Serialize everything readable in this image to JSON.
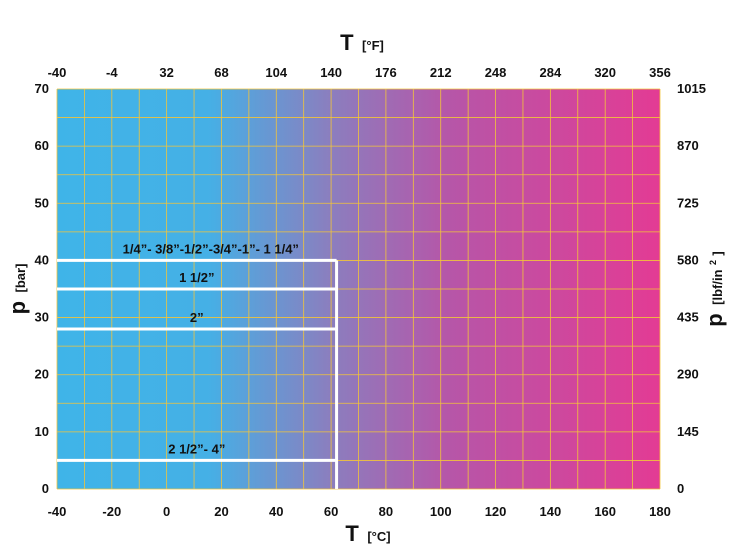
{
  "chart_data": {
    "type": "area",
    "title": "",
    "bottom_axis": {
      "symbol": "T",
      "unit": "[°C]",
      "range": [
        -40,
        180
      ],
      "ticks": [
        "-40",
        "-20",
        "0",
        "20",
        "40",
        "60",
        "80",
        "100",
        "120",
        "140",
        "160",
        "180"
      ]
    },
    "top_axis": {
      "symbol": "T",
      "unit": "[°F]",
      "range": [
        -40,
        356
      ],
      "ticks": [
        "-40",
        "-4",
        "32",
        "68",
        "104",
        "140",
        "176",
        "212",
        "248",
        "284",
        "320",
        "356"
      ]
    },
    "left_axis": {
      "symbol": "p",
      "unit": "[bar]",
      "range": [
        0,
        70
      ],
      "ticks": [
        "0",
        "10",
        "20",
        "30",
        "40",
        "50",
        "60",
        "70"
      ]
    },
    "right_axis": {
      "symbol": "p",
      "unit": "[lbf/in",
      "unit_sup": "2",
      "unit_end": "]",
      "range": [
        0,
        1015
      ],
      "ticks": [
        "0",
        "145",
        "290",
        "435",
        "580",
        "725",
        "870",
        "1015"
      ]
    },
    "grid": true,
    "gradient": [
      "#3fb4e8",
      "#e33b94"
    ],
    "ratings": [
      {
        "label": "1/4”- 3/8”-1/2”-3/4”-1”- 1 1/4”",
        "pressure_bar": 40,
        "max_temp_c": 62
      },
      {
        "label": "1 1/2”",
        "pressure_bar": 35,
        "max_temp_c": 62
      },
      {
        "label": "2”",
        "pressure_bar": 28,
        "max_temp_c": 62
      },
      {
        "label": "2 1/2”- 4”",
        "pressure_bar": 5,
        "max_temp_c": 62
      }
    ]
  }
}
